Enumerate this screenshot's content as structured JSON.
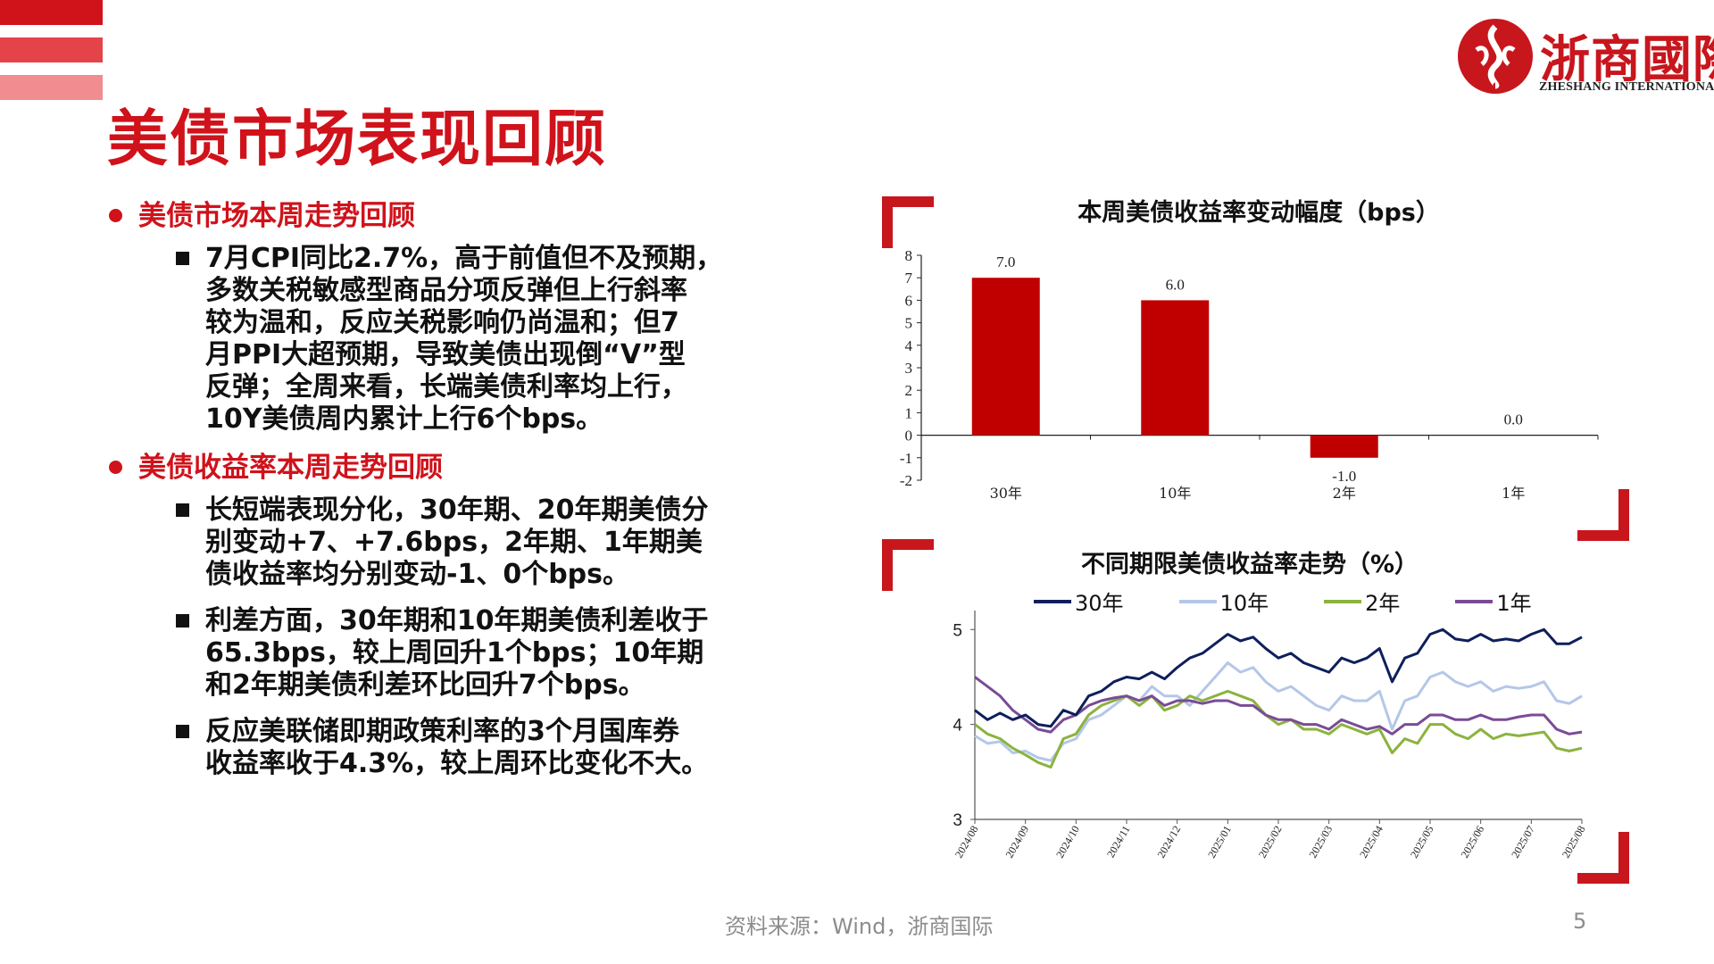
{
  "page": {
    "title": "美债市场表现回顾",
    "footer": "资料来源：Wind，浙商国际",
    "page_number": "5"
  },
  "logo": {
    "name": "浙商國際",
    "sub": "ZHESHANG INTERNATIONAL"
  },
  "colors": {
    "brand_red": "#d0121b",
    "bar_red": "#c00000",
    "series_30y": "#0e1f5b",
    "series_10y": "#b4c7e7",
    "series_2y": "#8bb33d",
    "series_1y": "#7a4b96"
  },
  "sections": [
    {
      "heading": "美债市场本周走势回顾",
      "bullets": [
        {
          "lines": [
            "7月CPI同比2.7%，高于前值但不及预期，",
            "多数关税敏感型商品分项反弹但上行斜率",
            "较为温和，反应关税影响仍尚温和；但7",
            "月PPI大超预期，导致美债出现倒“V”型",
            "反弹；全周来看，长端美债利率均上行，",
            "10Y美债周内累计上行6个bps。"
          ]
        }
      ]
    },
    {
      "heading": "美债收益率本周走势回顾",
      "bullets": [
        {
          "lines": [
            "长短端表现分化，30年期、20年期美债分",
            "别变动+7、+7.6bps，2年期、1年期美",
            "债收益率均分别变动-1、0个bps。"
          ]
        },
        {
          "lines": [
            "利差方面，30年期和10年期美债利差收于",
            "65.3bps，较上周回升1个bps；10年期",
            "和2年期美债利差环比回升7个bps。"
          ]
        },
        {
          "lines": [
            "反应美联储即期政策利率的3个月国库券",
            "收益率收于4.3%，较上周环比变化不大。"
          ]
        }
      ]
    }
  ],
  "chart_data": [
    {
      "type": "bar",
      "title": "本周美债收益率变动幅度（bps）",
      "categories": [
        "30年",
        "10年",
        "2年",
        "1年"
      ],
      "values": [
        7.0,
        6.0,
        -1.0,
        0.0
      ],
      "labels": [
        "7.0",
        "6.0",
        "-1.0",
        "0.0"
      ],
      "ylim": [
        -2,
        8
      ],
      "yticks": [
        "8",
        "7",
        "6",
        "5",
        "4",
        "3",
        "2",
        "1",
        "0",
        "-1",
        "-2"
      ],
      "grid": false,
      "legend": "none"
    },
    {
      "type": "line",
      "title": "不同期限美债收益率走势（%）",
      "x_ticks": [
        "2024/08",
        "2024/09",
        "2024/10",
        "2024/11",
        "2024/12",
        "2025/01",
        "2025/02",
        "2025/03",
        "2025/04",
        "2025/05",
        "2025/06",
        "2025/07",
        "2025/08"
      ],
      "ylim": [
        3,
        5.2
      ],
      "yticks": [
        "5",
        "4",
        "3"
      ],
      "legend": "top",
      "grid": false,
      "series": [
        {
          "name": "30年",
          "values": [
            4.15,
            4.05,
            4.12,
            4.05,
            4.1,
            4.0,
            3.98,
            4.15,
            4.1,
            4.3,
            4.35,
            4.45,
            4.5,
            4.48,
            4.55,
            4.48,
            4.6,
            4.7,
            4.75,
            4.85,
            4.95,
            4.88,
            4.92,
            4.8,
            4.7,
            4.75,
            4.65,
            4.6,
            4.55,
            4.7,
            4.65,
            4.7,
            4.8,
            4.45,
            4.7,
            4.75,
            4.95,
            5.0,
            4.9,
            4.88,
            4.95,
            4.88,
            4.9,
            4.88,
            4.95,
            5.0,
            4.85,
            4.85,
            4.92
          ]
        },
        {
          "name": "10年",
          "values": [
            3.88,
            3.8,
            3.82,
            3.7,
            3.72,
            3.65,
            3.62,
            3.8,
            3.85,
            4.05,
            4.1,
            4.2,
            4.3,
            4.25,
            4.4,
            4.3,
            4.3,
            4.2,
            4.35,
            4.5,
            4.65,
            4.55,
            4.6,
            4.45,
            4.35,
            4.4,
            4.3,
            4.2,
            4.15,
            4.3,
            4.25,
            4.25,
            4.35,
            3.95,
            4.25,
            4.3,
            4.5,
            4.55,
            4.45,
            4.4,
            4.45,
            4.35,
            4.4,
            4.38,
            4.4,
            4.45,
            4.25,
            4.22,
            4.3
          ]
        },
        {
          "name": "2年",
          "values": [
            4.0,
            3.9,
            3.85,
            3.75,
            3.68,
            3.6,
            3.55,
            3.85,
            3.9,
            4.1,
            4.2,
            4.25,
            4.3,
            4.2,
            4.3,
            4.15,
            4.2,
            4.3,
            4.25,
            4.3,
            4.35,
            4.3,
            4.25,
            4.1,
            4.0,
            4.05,
            3.95,
            3.95,
            3.9,
            4.0,
            3.95,
            3.9,
            3.95,
            3.7,
            3.85,
            3.8,
            4.0,
            4.0,
            3.9,
            3.85,
            3.95,
            3.85,
            3.9,
            3.88,
            3.9,
            3.92,
            3.75,
            3.72,
            3.75
          ]
        },
        {
          "name": "1年",
          "values": [
            4.5,
            4.4,
            4.3,
            4.15,
            4.05,
            3.95,
            3.92,
            4.05,
            4.1,
            4.2,
            4.25,
            4.28,
            4.3,
            4.25,
            4.3,
            4.2,
            4.25,
            4.25,
            4.22,
            4.25,
            4.25,
            4.2,
            4.2,
            4.1,
            4.05,
            4.05,
            4.0,
            4.0,
            3.95,
            4.05,
            4.0,
            3.95,
            3.98,
            3.9,
            4.0,
            4.0,
            4.1,
            4.1,
            4.05,
            4.05,
            4.1,
            4.05,
            4.05,
            4.08,
            4.1,
            4.1,
            3.95,
            3.9,
            3.92
          ]
        }
      ]
    }
  ]
}
